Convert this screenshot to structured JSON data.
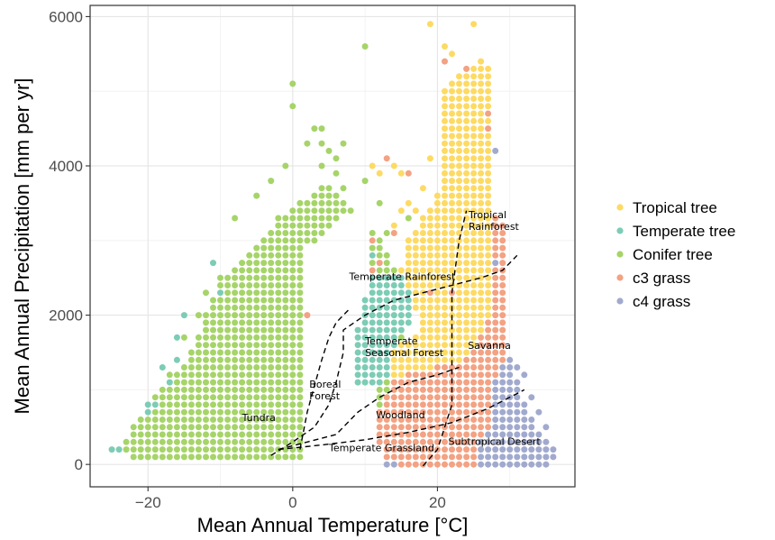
{
  "chart_data": {
    "type": "scatter",
    "xlabel": "Mean Annual Temperature [°C]",
    "ylabel": "Mean Annual Precipitation [mm per yr]",
    "xlim": [
      -28,
      39
    ],
    "ylim": [
      -300,
      6150
    ],
    "x_ticks": [
      -20,
      0,
      20
    ],
    "y_ticks": [
      0,
      2000,
      4000,
      6000
    ],
    "grid": true,
    "legend_position": "right",
    "series": [
      {
        "name": "Tropical tree",
        "color": "#FDDA64"
      },
      {
        "name": "Temperate tree",
        "color": "#7DCCB5"
      },
      {
        "name": "Conifer tree",
        "color": "#A6D469"
      },
      {
        "name": "c3 grass",
        "color": "#F3A283"
      },
      {
        "name": "c4 grass",
        "color": "#A1AACE"
      }
    ],
    "grid_step": {
      "x": 1,
      "y": 100
    },
    "regions": [
      {
        "series": "Conifer tree",
        "points": [
          [
            -22,
            100
          ],
          [
            2,
            100
          ],
          [
            2,
            2900
          ],
          [
            8,
            3400
          ],
          [
            12,
            3100
          ],
          [
            16,
            2300
          ],
          [
            15,
            1200
          ],
          [
            18,
            900
          ],
          [
            18,
            200
          ],
          [
            12,
            250
          ],
          [
            10,
            3300
          ],
          [
            5,
            3800
          ],
          [
            -2,
            3300
          ],
          [
            -6,
            2800
          ],
          [
            -10,
            2500
          ],
          [
            -14,
            1500
          ],
          [
            -20,
            800
          ],
          [
            -24,
            250
          ]
        ]
      },
      {
        "series": "Tropical tree",
        "points": [
          [
            14,
            1150
          ],
          [
            20,
            1300
          ],
          [
            24,
            1400
          ],
          [
            27,
            1900
          ],
          [
            27.5,
            4800
          ],
          [
            27,
            5350
          ],
          [
            24,
            5400
          ],
          [
            21,
            5000
          ],
          [
            20,
            3600
          ],
          [
            16,
            3000
          ],
          [
            15,
            2600
          ],
          [
            18,
            1800
          ],
          [
            14,
            1550
          ]
        ]
      },
      {
        "series": "Temperate tree",
        "points": [
          [
            8,
            1050
          ],
          [
            11,
            1000
          ],
          [
            14,
            1150
          ],
          [
            14,
            1550
          ],
          [
            17,
            2050
          ],
          [
            15,
            2600
          ],
          [
            11,
            2600
          ],
          [
            9,
            1800
          ]
        ]
      },
      {
        "series": "c3 grass",
        "points": [
          [
            13,
            -50
          ],
          [
            26,
            -50
          ],
          [
            27,
            300
          ],
          [
            28,
            500
          ],
          [
            30,
            1000
          ],
          [
            30,
            1300
          ],
          [
            29.5,
            1700
          ],
          [
            29.5,
            3200
          ],
          [
            28,
            3300
          ],
          [
            27.5,
            2000
          ],
          [
            24,
            1400
          ],
          [
            20,
            1300
          ],
          [
            14,
            1150
          ],
          [
            12,
            700
          ],
          [
            12,
            300
          ]
        ]
      },
      {
        "series": "c4 grass",
        "points": [
          [
            26,
            -50
          ],
          [
            35,
            -50
          ],
          [
            36,
            200
          ],
          [
            34,
            500
          ],
          [
            31,
            1100
          ],
          [
            30,
            1500
          ],
          [
            28,
            1100
          ],
          [
            28,
            500
          ],
          [
            26,
            300
          ]
        ]
      }
    ],
    "points": [
      {
        "series": "Conifer tree",
        "x": -25,
        "y": 200
      },
      {
        "series": "Conifer tree",
        "x": -24,
        "y": 200
      },
      {
        "series": "Conifer tree",
        "x": -23,
        "y": 300
      },
      {
        "series": "Temperate tree",
        "x": -25,
        "y": 200
      },
      {
        "series": "Temperate tree",
        "x": -24,
        "y": 200
      },
      {
        "series": "Temperate tree",
        "x": -20,
        "y": 700
      },
      {
        "series": "Temperate tree",
        "x": -20,
        "y": 800
      },
      {
        "series": "Temperate tree",
        "x": -19,
        "y": 800
      },
      {
        "series": "Temperate tree",
        "x": -18,
        "y": 1300
      },
      {
        "series": "Temperate tree",
        "x": -17,
        "y": 1100
      },
      {
        "series": "Temperate tree",
        "x": -16,
        "y": 1400
      },
      {
        "series": "Temperate tree",
        "x": -16,
        "y": 1700
      },
      {
        "series": "Temperate tree",
        "x": -15,
        "y": 2000
      },
      {
        "series": "Temperate tree",
        "x": -11,
        "y": 2700
      },
      {
        "series": "Temperate tree",
        "x": -10,
        "y": 2300
      },
      {
        "series": "Temperate tree",
        "x": 11,
        "y": 2800
      },
      {
        "series": "Conifer tree",
        "x": -17,
        "y": 1200
      },
      {
        "series": "Conifer tree",
        "x": -15,
        "y": 1700
      },
      {
        "series": "Conifer tree",
        "x": -13,
        "y": 2000
      },
      {
        "series": "Conifer tree",
        "x": -12,
        "y": 2300
      },
      {
        "series": "Conifer tree",
        "x": -8,
        "y": 3300
      },
      {
        "series": "Conifer tree",
        "x": -5,
        "y": 3600
      },
      {
        "series": "Conifer tree",
        "x": -3,
        "y": 3800
      },
      {
        "series": "Conifer tree",
        "x": -1,
        "y": 4000
      },
      {
        "series": "Conifer tree",
        "x": 0,
        "y": 4800
      },
      {
        "series": "Conifer tree",
        "x": 0,
        "y": 5100
      },
      {
        "series": "Conifer tree",
        "x": 2,
        "y": 4300
      },
      {
        "series": "Conifer tree",
        "x": 3,
        "y": 4500
      },
      {
        "series": "Conifer tree",
        "x": 4,
        "y": 4500
      },
      {
        "series": "Conifer tree",
        "x": 4,
        "y": 4300
      },
      {
        "series": "Conifer tree",
        "x": 5,
        "y": 4200
      },
      {
        "series": "Conifer tree",
        "x": 6,
        "y": 4100
      },
      {
        "series": "Conifer tree",
        "x": 7,
        "y": 4300
      },
      {
        "series": "Conifer tree",
        "x": 4,
        "y": 4000
      },
      {
        "series": "Conifer tree",
        "x": 6,
        "y": 3900
      },
      {
        "series": "Conifer tree",
        "x": 7,
        "y": 3700
      },
      {
        "series": "Conifer tree",
        "x": 10,
        "y": 3800
      },
      {
        "series": "Conifer tree",
        "x": 10,
        "y": 5600
      },
      {
        "series": "Conifer tree",
        "x": 12,
        "y": 3500
      },
      {
        "series": "Conifer tree",
        "x": 13,
        "y": 3100
      },
      {
        "series": "Conifer tree",
        "x": 16,
        "y": 3300
      },
      {
        "series": "Tropical tree",
        "x": 11,
        "y": 4000
      },
      {
        "series": "Tropical tree",
        "x": 12,
        "y": 3900
      },
      {
        "series": "Tropical tree",
        "x": 14,
        "y": 4000
      },
      {
        "series": "Tropical tree",
        "x": 15,
        "y": 3900
      },
      {
        "series": "Tropical tree",
        "x": 15,
        "y": 3400
      },
      {
        "series": "Tropical tree",
        "x": 16,
        "y": 3500
      },
      {
        "series": "Tropical tree",
        "x": 17,
        "y": 3400
      },
      {
        "series": "Tropical tree",
        "x": 14,
        "y": 3200
      },
      {
        "series": "Tropical tree",
        "x": 19,
        "y": 4100
      },
      {
        "series": "Tropical tree",
        "x": 18,
        "y": 3700
      },
      {
        "series": "Tropical tree",
        "x": 19,
        "y": 5900
      },
      {
        "series": "Tropical tree",
        "x": 21,
        "y": 5600
      },
      {
        "series": "Tropical tree",
        "x": 22,
        "y": 5500
      },
      {
        "series": "Tropical tree",
        "x": 25,
        "y": 5900
      },
      {
        "series": "Tropical tree",
        "x": 26,
        "y": 5400
      },
      {
        "series": "c3 grass",
        "x": 13,
        "y": 4100
      },
      {
        "series": "c3 grass",
        "x": 16,
        "y": 3900
      },
      {
        "series": "c3 grass",
        "x": 14,
        "y": 3100
      },
      {
        "series": "c3 grass",
        "x": 11,
        "y": 3000
      },
      {
        "series": "c3 grass",
        "x": 12,
        "y": 2700
      },
      {
        "series": "c3 grass",
        "x": 11,
        "y": 2600
      },
      {
        "series": "c3 grass",
        "x": 2,
        "y": 2000
      },
      {
        "series": "c3 grass",
        "x": 21,
        "y": 5400
      },
      {
        "series": "c3 grass",
        "x": 24,
        "y": 5300
      },
      {
        "series": "c3 grass",
        "x": 27,
        "y": 4700
      },
      {
        "series": "c3 grass",
        "x": 27,
        "y": 4500
      },
      {
        "series": "c3 grass",
        "x": 28,
        "y": 3300
      },
      {
        "series": "c3 grass",
        "x": 28,
        "y": 3000
      },
      {
        "series": "c3 grass",
        "x": 28,
        "y": 2600
      },
      {
        "series": "c3 grass",
        "x": 29,
        "y": 1700
      },
      {
        "series": "c3 grass",
        "x": 22,
        "y": 2300
      },
      {
        "series": "c3 grass",
        "x": 19,
        "y": 2300
      },
      {
        "series": "c4 grass",
        "x": 28,
        "y": 4200
      },
      {
        "series": "c4 grass",
        "x": 28,
        "y": 2700
      },
      {
        "series": "c4 grass",
        "x": 30,
        "y": 1400
      },
      {
        "series": "c4 grass",
        "x": 31,
        "y": 1300
      },
      {
        "series": "c4 grass",
        "x": 32,
        "y": 1200
      },
      {
        "series": "c4 grass",
        "x": 31,
        "y": 1100
      },
      {
        "series": "c4 grass",
        "x": 33,
        "y": 900
      },
      {
        "series": "c4 grass",
        "x": 34,
        "y": 700
      },
      {
        "series": "c4 grass",
        "x": 35,
        "y": 500
      },
      {
        "series": "c4 grass",
        "x": 36,
        "y": 200
      },
      {
        "series": "c4 grass",
        "x": 36,
        "y": 100
      },
      {
        "series": "c4 grass",
        "x": 35,
        "y": 0
      },
      {
        "series": "c4 grass",
        "x": 34,
        "y": 0
      },
      {
        "series": "c4 grass",
        "x": 33,
        "y": 0
      },
      {
        "series": "c4 grass",
        "x": 32,
        "y": 0
      },
      {
        "series": "c4 grass",
        "x": 31,
        "y": 0
      },
      {
        "series": "c4 grass",
        "x": 30,
        "y": 0
      },
      {
        "series": "c4 grass",
        "x": 29,
        "y": 0
      },
      {
        "series": "c4 grass",
        "x": 13,
        "y": 0
      },
      {
        "series": "c4 grass",
        "x": 14,
        "y": 0
      }
    ],
    "boundaries": [
      [
        [
          -3,
          120
        ],
        [
          0,
          300
        ],
        [
          3,
          500
        ],
        [
          5,
          800
        ],
        [
          6,
          1100
        ],
        [
          7,
          1500
        ],
        [
          7,
          1800
        ],
        [
          10,
          2000
        ],
        [
          14,
          2200
        ],
        [
          18,
          2300
        ],
        [
          22,
          2400
        ],
        [
          26,
          2500
        ],
        [
          29,
          2600
        ],
        [
          31,
          2800
        ]
      ],
      [
        [
          -2,
          200
        ],
        [
          2,
          300
        ],
        [
          6,
          400
        ],
        [
          9,
          700
        ],
        [
          12,
          900
        ],
        [
          16,
          1100
        ],
        [
          20,
          1200
        ],
        [
          23,
          1300
        ]
      ],
      [
        [
          -2,
          200
        ],
        [
          4,
          260
        ],
        [
          10,
          330
        ],
        [
          16,
          430
        ],
        [
          22,
          560
        ],
        [
          27,
          750
        ],
        [
          32,
          1000
        ]
      ],
      [
        [
          1,
          200
        ],
        [
          2,
          700
        ],
        [
          3,
          1050
        ],
        [
          4,
          1400
        ],
        [
          5,
          1700
        ],
        [
          6,
          1900
        ],
        [
          8,
          2100
        ]
      ],
      [
        [
          18,
          -20
        ],
        [
          20,
          200
        ],
        [
          21,
          500
        ],
        [
          22,
          800
        ],
        [
          22,
          1300
        ],
        [
          22,
          2300
        ],
        [
          23,
          3000
        ],
        [
          24,
          3400
        ]
      ]
    ],
    "annotations": [
      {
        "lines": [
          "Tropical",
          "Rainforest"
        ],
        "x": 24.3,
        "y": 3300
      },
      {
        "lines": [
          "Temperate Rainforest"
        ],
        "x": 7.8,
        "y": 2470
      },
      {
        "lines": [
          "Temperate",
          "Seasonal Forest"
        ],
        "x": 10,
        "y": 1610
      },
      {
        "lines": [
          "Savanna"
        ],
        "x": 24.2,
        "y": 1550
      },
      {
        "lines": [
          "Boreal",
          "Forest"
        ],
        "x": 2.3,
        "y": 1030
      },
      {
        "lines": [
          "Tundra"
        ],
        "x": -7,
        "y": 580
      },
      {
        "lines": [
          "Woodland"
        ],
        "x": 11.5,
        "y": 620
      },
      {
        "lines": [
          "Subtropical Desert"
        ],
        "x": 21.5,
        "y": 260
      },
      {
        "lines": [
          "Temperate Grassland"
        ],
        "x": 5,
        "y": 180
      }
    ]
  }
}
